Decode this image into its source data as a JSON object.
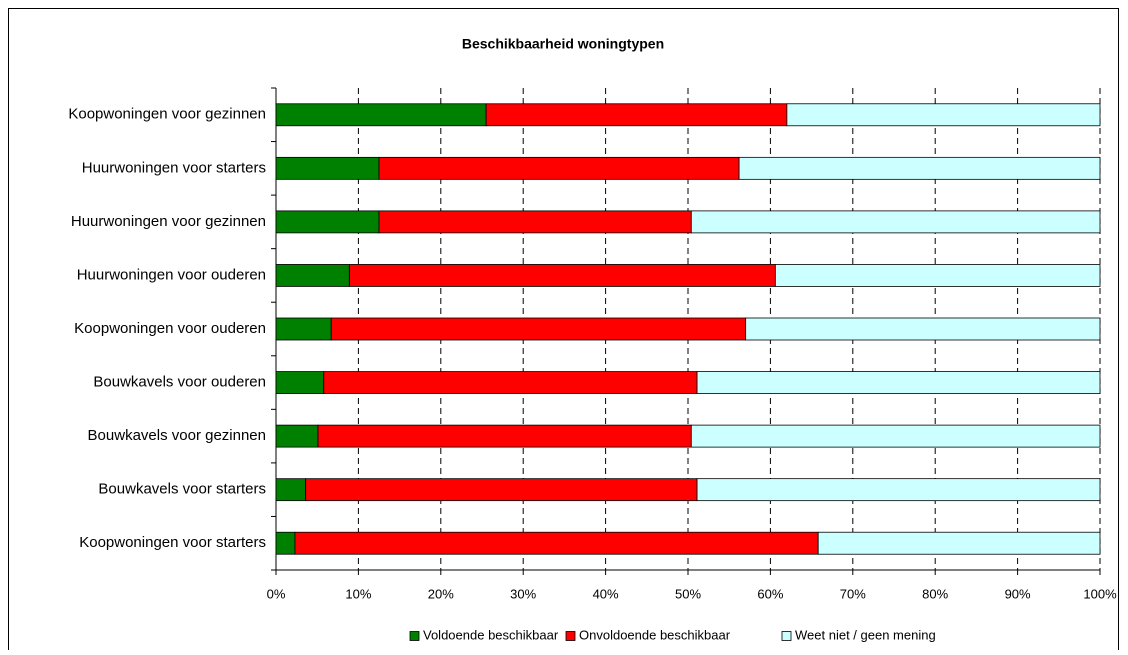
{
  "chart_data": {
    "type": "stacked-barh",
    "title": "Beschikbaarheid woningtypen",
    "categories": [
      "Koopwoningen voor gezinnen",
      "Huurwoningen voor starters",
      "Huurwoningen voor gezinnen",
      "Huurwoningen voor ouderen",
      "Koopwoningen voor ouderen",
      "Bouwkavels voor ouderen",
      "Bouwkavels voor gezinnen",
      "Bouwkavels voor starters",
      "Koopwoningen voor starters"
    ],
    "series": [
      {
        "name": "Voldoende beschikbaar",
        "color": "#008000",
        "values": [
          25.5,
          12.5,
          12.5,
          8.9,
          6.7,
          5.8,
          5.1,
          3.6,
          2.3
        ]
      },
      {
        "name": "Onvoldoende beschikbaar",
        "color": "#ff0000",
        "values": [
          36.5,
          43.7,
          37.9,
          51.7,
          50.3,
          45.3,
          45.3,
          47.5,
          63.5
        ]
      },
      {
        "name": "Weet niet / geen mening",
        "color": "#ccffff",
        "values": [
          38.0,
          43.8,
          49.6,
          39.4,
          43.0,
          48.9,
          49.6,
          48.9,
          34.2
        ]
      }
    ],
    "xlim": [
      0,
      100
    ],
    "xticks": [
      {
        "value": 0,
        "label": "0%"
      },
      {
        "value": 10,
        "label": "10%"
      },
      {
        "value": 20,
        "label": "20%"
      },
      {
        "value": 30,
        "label": "30%"
      },
      {
        "value": 40,
        "label": "40%"
      },
      {
        "value": 50,
        "label": "50%"
      },
      {
        "value": 60,
        "label": "60%"
      },
      {
        "value": 70,
        "label": "70%"
      },
      {
        "value": 80,
        "label": "80%"
      },
      {
        "value": 90,
        "label": "90%"
      },
      {
        "value": 100,
        "label": "100%"
      }
    ],
    "grid": true,
    "legend": "bottom"
  }
}
